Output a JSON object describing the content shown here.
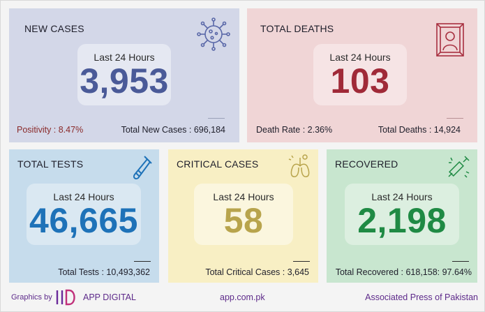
{
  "new_cases": {
    "title": "NEW CASES",
    "period": "Last 24 Hours",
    "value": "3,953",
    "positivity": "Positivity : 8.47%",
    "total": "Total New Cases : 696,184",
    "color": "#4a5a98",
    "bg": "#d3d7e8",
    "icon": "virus-icon"
  },
  "total_deaths": {
    "title": "TOTAL DEATHS",
    "period": "Last 24 Hours",
    "value": "103",
    "rate": "Death Rate : 2.36%",
    "total": "Total Deaths : 14,924",
    "color": "#a02a38",
    "bg": "#f0d5d6",
    "icon": "portrait-frame-icon"
  },
  "total_tests": {
    "title": "TOTAL TESTS",
    "period": "Last 24 Hours",
    "value": "46,665",
    "total": "Total Tests : 10,493,362",
    "color": "#1e72b8",
    "bg": "#c6dcec",
    "icon": "test-tube-icon"
  },
  "critical_cases": {
    "title": "CRITICAL CASES",
    "period": "Last 24 Hours",
    "value": "58",
    "total": "Total Critical Cases : 3,645",
    "color": "#b8a44c",
    "bg": "#f8efc4",
    "icon": "lungs-icon"
  },
  "recovered": {
    "title": "RECOVERED",
    "period": "Last 24 Hours",
    "value": "2,198",
    "total": "Total Recovered : 618,158: 97.64%",
    "color": "#1f8a44",
    "bg": "#c8e6cf",
    "icon": "vaccine-syringe-icon"
  },
  "footer": {
    "graphics_by": "Graphics by",
    "app_digital": "APP DIGITAL",
    "site": "app.com.pk",
    "agency": "Associated Press of Pakistan"
  }
}
